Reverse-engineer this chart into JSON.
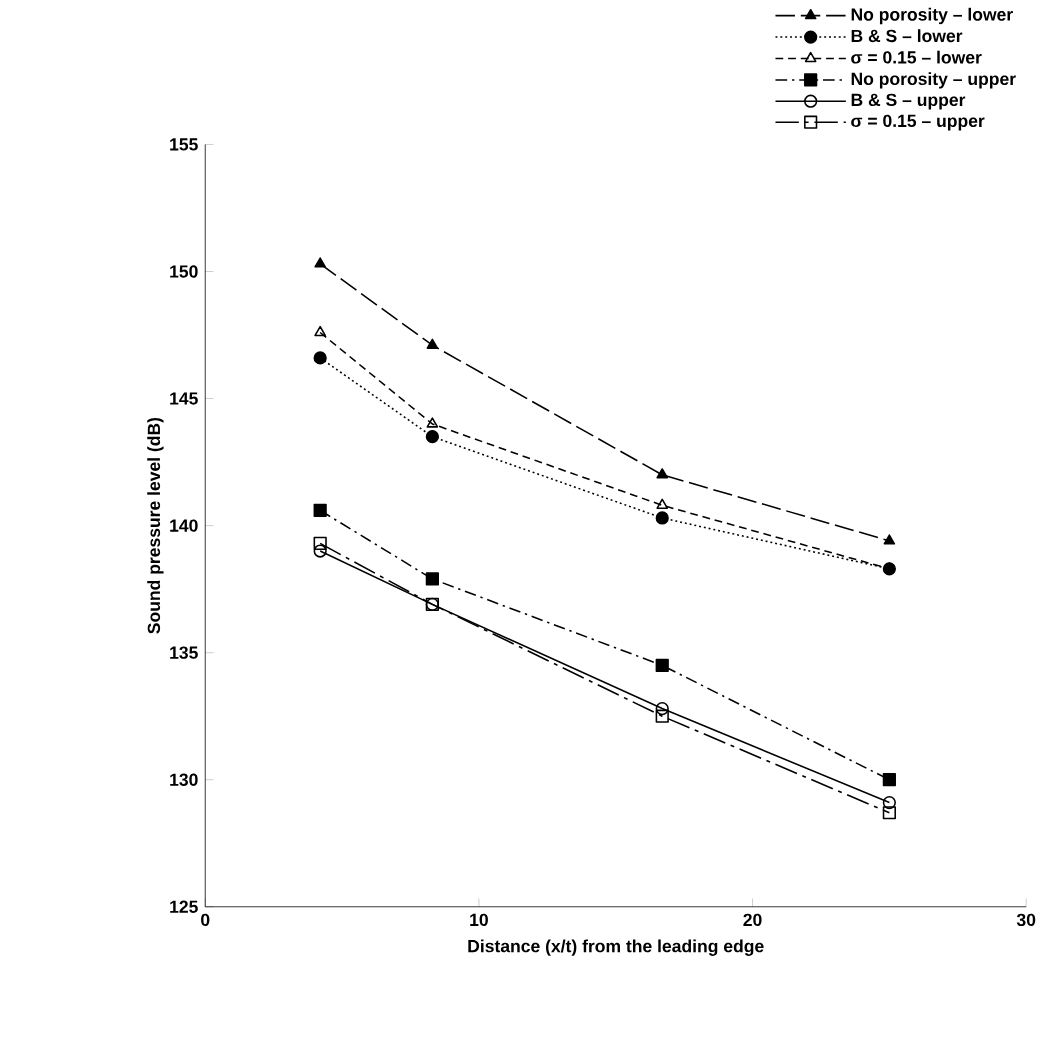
{
  "chart_data": {
    "type": "line",
    "xlabel": "Distance (x/t) from the leading edge",
    "ylabel": "Sound pressure level (dB)",
    "xlim": [
      0,
      30
    ],
    "xticks": [
      0,
      10,
      20,
      30
    ],
    "ylim": [
      125,
      155
    ],
    "yticks": [
      125,
      130,
      135,
      140,
      145,
      150,
      155
    ],
    "x": [
      4.2,
      8.3,
      16.7,
      25
    ],
    "legend": "top right",
    "grid": false,
    "series": [
      {
        "name": "No porosity – lower",
        "color": "#000000",
        "marker": "triangle",
        "line_style": "longdash",
        "values": [
          150.3,
          147.1,
          142.0,
          139.4
        ]
      },
      {
        "name": "B & S – lower",
        "color": "#000000",
        "marker": "circle",
        "line_style": "dotted",
        "values": [
          146.6,
          143.5,
          140.3,
          138.3
        ]
      },
      {
        "name": "σ = 0.15 – lower",
        "color": "#000000",
        "marker": "triangle-open",
        "line_style": "dashed",
        "values": [
          147.6,
          144.0,
          140.8,
          138.3
        ]
      },
      {
        "name": "No porosity – upper",
        "color": "#000000",
        "marker": "square",
        "line_style": "dashdot",
        "values": [
          140.6,
          137.9,
          134.5,
          130.0
        ]
      },
      {
        "name": "B & S – upper",
        "color": "#000000",
        "marker": "circle-open",
        "line_style": "solid",
        "values": [
          139.0,
          136.9,
          132.8,
          129.1
        ]
      },
      {
        "name": "σ = 0.15 – upper",
        "color": "#000000",
        "marker": "square-open",
        "line_style": "longdashdot",
        "values": [
          139.3,
          136.9,
          132.5,
          128.7
        ]
      }
    ]
  }
}
